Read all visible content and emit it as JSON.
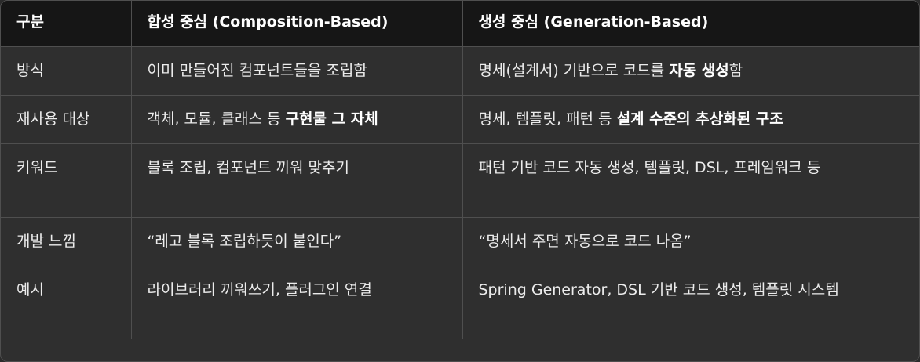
{
  "table": {
    "headers": [
      "구분",
      "합성 중심 (Composition-Based)",
      "생성 중심 (Generation-Based)"
    ],
    "rows": [
      {
        "label": "방식",
        "composition": "이미 만들어진 컴포넌트들을 조립함",
        "generation_pre": "명세(설계서) 기반으로 코드를 ",
        "generation_bold": "자동 생성",
        "generation_post": "함"
      },
      {
        "label": "재사용 대상",
        "composition_pre": "객체, 모듈, 클래스 등 ",
        "composition_bold": "구현물 그 자체",
        "generation_pre": "명세, 템플릿, 패턴 등 ",
        "generation_bold": "설계 수준의 추상화된 구조"
      },
      {
        "label": "키워드",
        "composition": "블록 조립, 컴포넌트 끼워 맞추기",
        "generation": "패턴 기반 코드 자동 생성, 템플릿, DSL, 프레임워크 등"
      },
      {
        "label": "개발 느낌",
        "composition": "“레고 블록 조립하듯이 붙인다”",
        "generation": "“명세서 주면 자동으로 코드 나옴”"
      },
      {
        "label": "예시",
        "composition": "라이브러리 끼워쓰기, 플러그인 연결",
        "generation": "Spring Generator, DSL 기반 코드 생성, 템플릿 시스템"
      }
    ]
  }
}
